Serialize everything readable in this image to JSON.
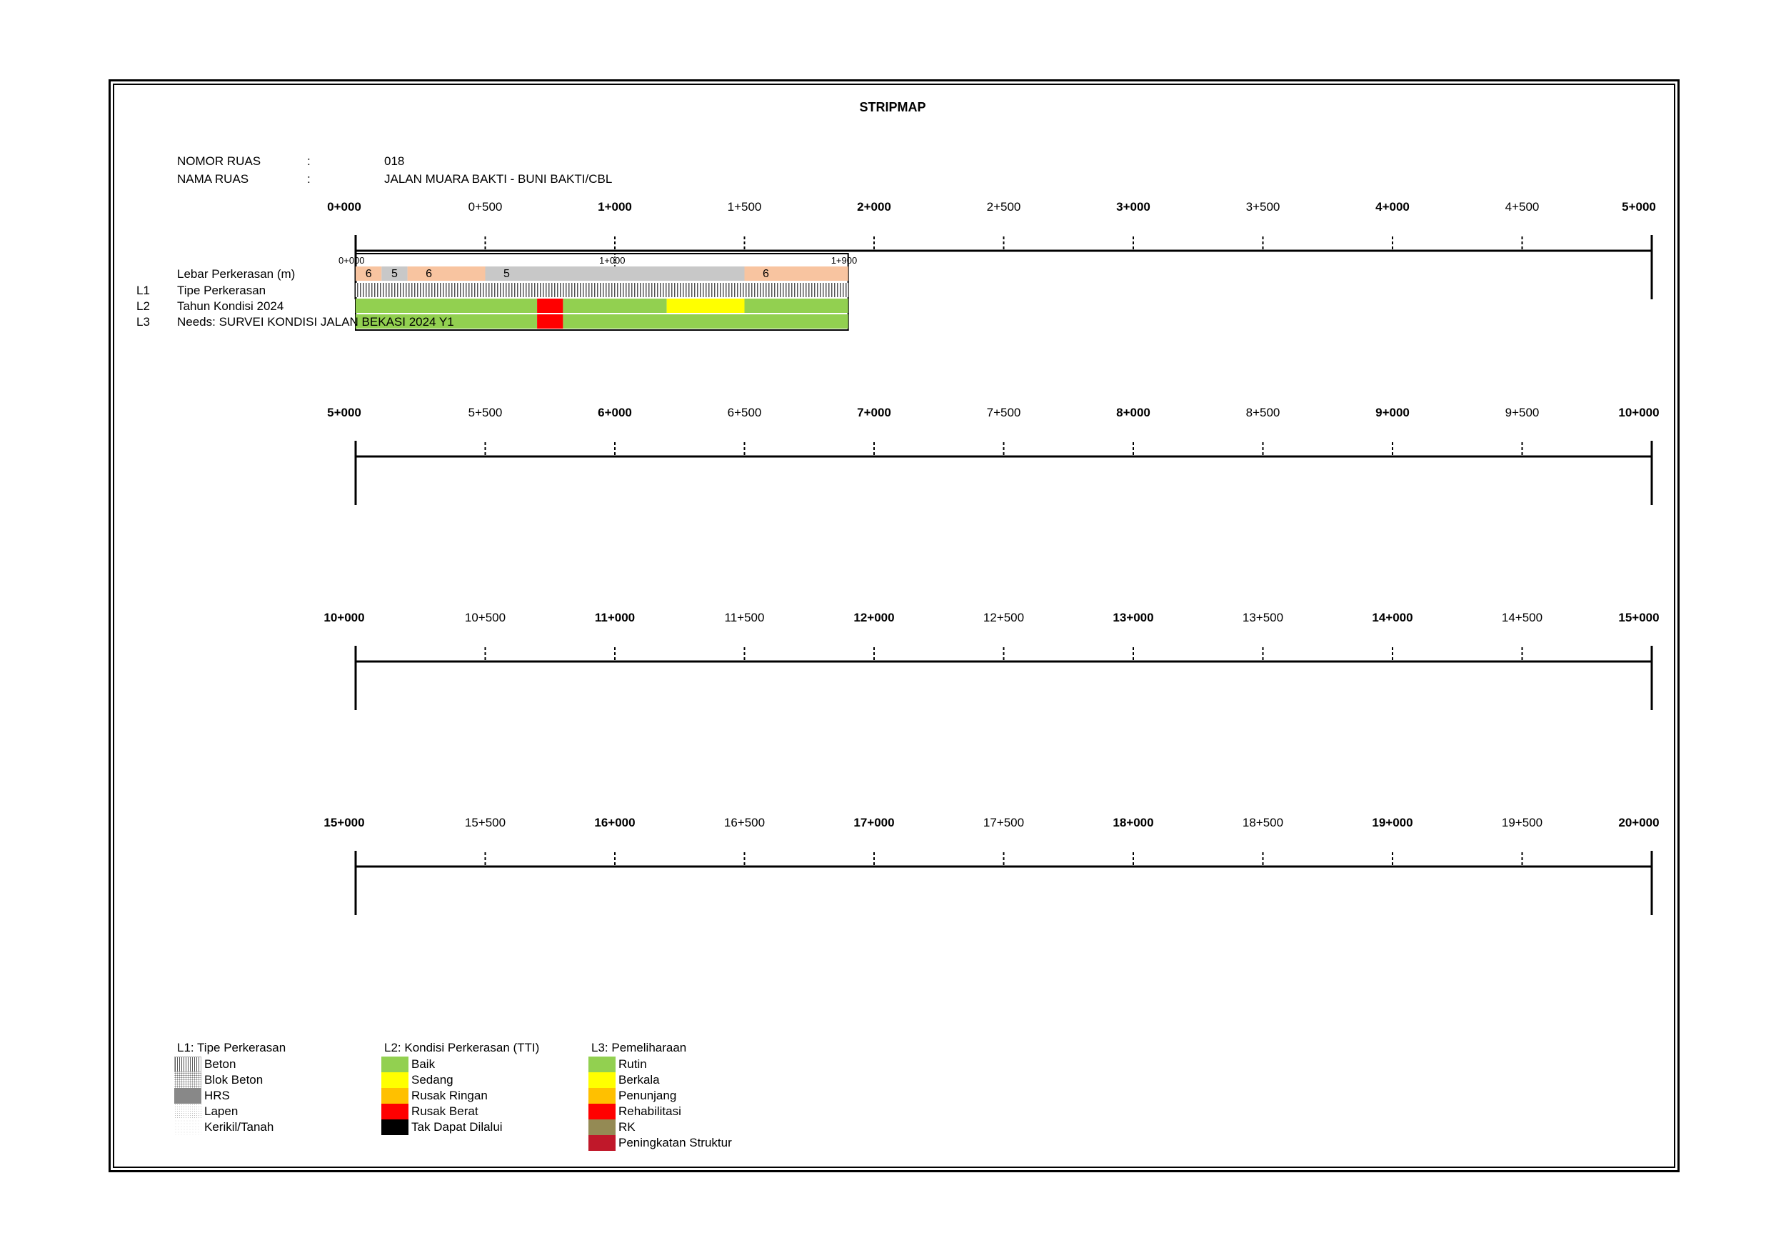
{
  "title": "STRIPMAP",
  "info": {
    "nomor_label": "NOMOR RUAS",
    "nomor_colon": ":",
    "nomor_value": "018",
    "nama_label": "NAMA RUAS",
    "nama_colon": ":",
    "nama_value": "JALAN MUARA BAKTI - BUNI BAKTI/CBL"
  },
  "strips": [
    {
      "labels": [
        "0+000",
        "0+500",
        "1+000",
        "1+500",
        "2+000",
        "2+500",
        "3+000",
        "3+500",
        "4+000",
        "4+500",
        "5+000"
      ]
    },
    {
      "labels": [
        "5+000",
        "5+500",
        "6+000",
        "6+500",
        "7+000",
        "7+500",
        "8+000",
        "8+500",
        "9+000",
        "9+500",
        "10+000"
      ]
    },
    {
      "labels": [
        "10+000",
        "10+500",
        "11+000",
        "11+500",
        "12+000",
        "12+500",
        "13+000",
        "13+500",
        "14+000",
        "14+500",
        "15+000"
      ]
    },
    {
      "labels": [
        "15+000",
        "15+500",
        "16+000",
        "16+500",
        "17+000",
        "17+500",
        "18+000",
        "18+500",
        "19+000",
        "19+500",
        "20+000"
      ]
    }
  ],
  "segment_marks": [
    {
      "km": 0,
      "label": "0+000"
    },
    {
      "km": 1,
      "label": "1+000"
    },
    {
      "km": 1.9,
      "label": "1+900"
    }
  ],
  "rows": {
    "lebar_label": "Lebar Perkerasan (m)",
    "l1_code": "L1",
    "l1_label": "Tipe Perkerasan",
    "l2_code": "L2",
    "l2_label": "Tahun Kondisi 2024",
    "l3_code": "L3",
    "l3_label": "Needs: SURVEI KONDISI JALAN BEKASI 2024 Y1"
  },
  "lebar": [
    {
      "from": 0,
      "to": 0.1,
      "value": "6",
      "color": "#f8c4a0"
    },
    {
      "from": 0.1,
      "to": 0.2,
      "value": "5",
      "color": "#c8c8c8"
    },
    {
      "from": 0.2,
      "to": 0.5,
      "value": "6",
      "color": "#f8c4a0"
    },
    {
      "from": 0.5,
      "to": 1.5,
      "value": "5",
      "color": "#c8c8c8"
    },
    {
      "from": 1.5,
      "to": 1.9,
      "value": "6",
      "color": "#f8c4a0"
    }
  ],
  "l1_segments": [
    {
      "from": 0,
      "to": 1.9,
      "type": "Beton"
    }
  ],
  "l2_segments": [
    {
      "from": 0,
      "to": 0.7,
      "color": "#92d050"
    },
    {
      "from": 0.7,
      "to": 0.8,
      "color": "#ff0000"
    },
    {
      "from": 0.8,
      "to": 1.2,
      "color": "#92d050"
    },
    {
      "from": 1.2,
      "to": 1.5,
      "color": "#ffff00"
    },
    {
      "from": 1.5,
      "to": 1.9,
      "color": "#92d050"
    }
  ],
  "l3_segments": [
    {
      "from": 0,
      "to": 0.7,
      "color": "#92d050"
    },
    {
      "from": 0.7,
      "to": 0.8,
      "color": "#ff0000"
    },
    {
      "from": 0.8,
      "to": 1.9,
      "color": "#92d050"
    }
  ],
  "legend": {
    "l1": {
      "title": "L1: Tipe Perkerasan",
      "items": [
        {
          "label": "Beton",
          "pattern": "beton"
        },
        {
          "label": "Blok Beton",
          "pattern": "blok"
        },
        {
          "label": "HRS",
          "pattern": "hrs"
        },
        {
          "label": "Lapen",
          "pattern": "lapen"
        },
        {
          "label": "Kerikil/Tanah",
          "pattern": "kerikil"
        }
      ]
    },
    "l2": {
      "title": "L2: Kondisi Perkerasan (TTI)",
      "items": [
        {
          "label": "Baik",
          "color": "#92d050"
        },
        {
          "label": "Sedang",
          "color": "#ffff00"
        },
        {
          "label": "Rusak Ringan",
          "color": "#ffc000"
        },
        {
          "label": "Rusak Berat",
          "color": "#ff0000"
        },
        {
          "label": "Tak Dapat Dilalui",
          "color": "#000000"
        }
      ]
    },
    "l3": {
      "title": "L3: Pemeliharaan",
      "items": [
        {
          "label": "Rutin",
          "color": "#92d050"
        },
        {
          "label": "Berkala",
          "color": "#ffff00"
        },
        {
          "label": "Penunjang",
          "color": "#ffc000"
        },
        {
          "label": "Rehabilitasi",
          "color": "#ff0000"
        },
        {
          "label": "RK",
          "color": "#948a54"
        },
        {
          "label": "Peningkatan Struktur",
          "color": "#c0182a"
        }
      ]
    }
  }
}
